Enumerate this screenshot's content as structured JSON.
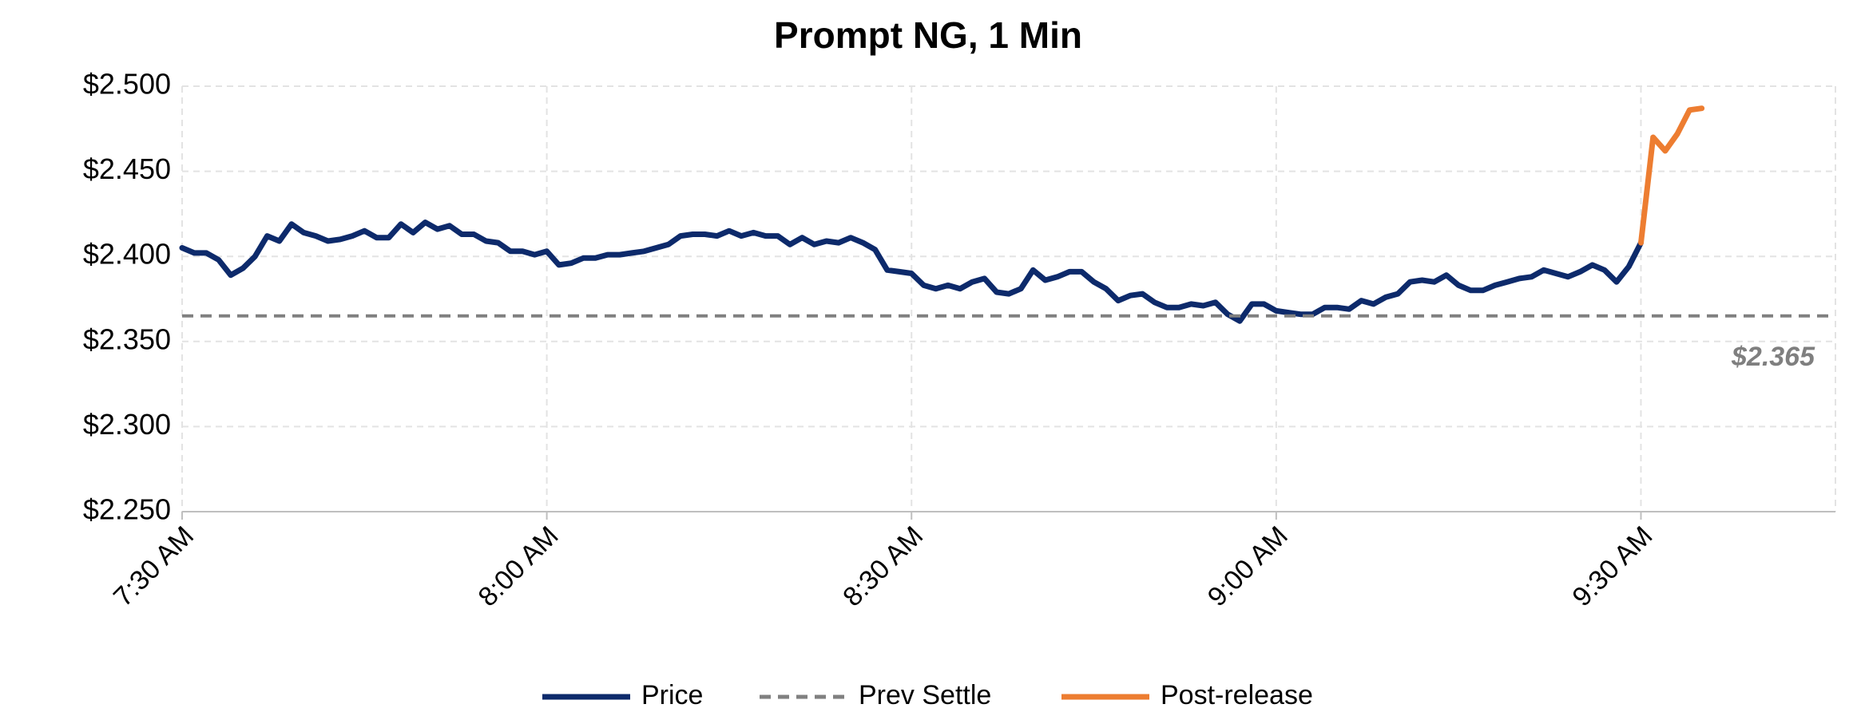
{
  "chart_data": {
    "type": "line",
    "title": "Prompt NG, 1 Min",
    "xlim": [
      450,
      586
    ],
    "xticks": [
      {
        "value": 450,
        "label": "7:30 AM"
      },
      {
        "value": 480,
        "label": "8:00 AM"
      },
      {
        "value": 510,
        "label": "8:30 AM"
      },
      {
        "value": 540,
        "label": "9:00 AM"
      },
      {
        "value": 570,
        "label": "9:30 AM"
      }
    ],
    "ylim": [
      2.25,
      2.5
    ],
    "yticks": [
      {
        "value": 2.25,
        "label": "$2.250"
      },
      {
        "value": 2.3,
        "label": "$2.300"
      },
      {
        "value": 2.35,
        "label": "$2.350"
      },
      {
        "value": 2.4,
        "label": "$2.400"
      },
      {
        "value": 2.45,
        "label": "$2.450"
      },
      {
        "value": 2.5,
        "label": "$2.500"
      }
    ],
    "grid": true,
    "series": [
      {
        "name": "Price",
        "color": "#0d2a6b",
        "dash": false,
        "x": [
          450,
          451,
          452,
          453,
          454,
          455,
          456,
          457,
          458,
          459,
          460,
          461,
          462,
          463,
          464,
          465,
          466,
          467,
          468,
          469,
          470,
          471,
          472,
          473,
          474,
          475,
          476,
          477,
          478,
          479,
          480,
          481,
          482,
          483,
          484,
          485,
          486,
          487,
          488,
          489,
          490,
          491,
          492,
          493,
          494,
          495,
          496,
          497,
          498,
          499,
          500,
          501,
          502,
          503,
          504,
          505,
          506,
          507,
          508,
          509,
          510,
          511,
          512,
          513,
          514,
          515,
          516,
          517,
          518,
          519,
          520,
          521,
          522,
          523,
          524,
          525,
          526,
          527,
          528,
          529,
          530,
          531,
          532,
          533,
          534,
          535,
          536,
          537,
          538,
          539,
          540,
          541,
          542,
          543,
          544,
          545,
          546,
          547,
          548,
          549,
          550,
          551,
          552,
          553,
          554,
          555,
          556,
          557,
          558,
          559,
          560,
          561,
          562,
          563,
          564,
          565,
          566,
          567,
          568,
          569,
          570
        ],
        "values": [
          2.405,
          2.402,
          2.402,
          2.398,
          2.389,
          2.393,
          2.4,
          2.412,
          2.409,
          2.419,
          2.414,
          2.412,
          2.409,
          2.41,
          2.412,
          2.415,
          2.411,
          2.411,
          2.419,
          2.414,
          2.42,
          2.416,
          2.418,
          2.413,
          2.413,
          2.409,
          2.408,
          2.403,
          2.403,
          2.401,
          2.403,
          2.395,
          2.396,
          2.399,
          2.399,
          2.401,
          2.401,
          2.402,
          2.403,
          2.405,
          2.407,
          2.412,
          2.413,
          2.413,
          2.412,
          2.415,
          2.412,
          2.414,
          2.412,
          2.412,
          2.407,
          2.411,
          2.407,
          2.409,
          2.408,
          2.411,
          2.408,
          2.404,
          2.392,
          2.391,
          2.39,
          2.383,
          2.381,
          2.383,
          2.381,
          2.385,
          2.387,
          2.379,
          2.378,
          2.381,
          2.392,
          2.386,
          2.388,
          2.391,
          2.391,
          2.385,
          2.381,
          2.374,
          2.377,
          2.378,
          2.373,
          2.37,
          2.37,
          2.372,
          2.371,
          2.373,
          2.366,
          2.362,
          2.372,
          2.372,
          2.368,
          2.367,
          2.366,
          2.366,
          2.37,
          2.37,
          2.369,
          2.374,
          2.372,
          2.376,
          2.378,
          2.385,
          2.386,
          2.385,
          2.389,
          2.383,
          2.38,
          2.38,
          2.383,
          2.385,
          2.387,
          2.388,
          2.392,
          2.39,
          2.388,
          2.391,
          2.395,
          2.392,
          2.385,
          2.394,
          2.408
        ]
      },
      {
        "name": "Prev Settle",
        "color": "#808080",
        "dash": true,
        "x": [
          450,
          586
        ],
        "values": [
          2.365,
          2.365
        ],
        "value_labels": [
          null,
          "$2.365"
        ]
      },
      {
        "name": "Post-release",
        "color": "#ed7d31",
        "dash": false,
        "x": [
          570,
          571,
          572,
          573,
          574,
          575
        ],
        "values": [
          2.408,
          2.47,
          2.462,
          2.472,
          2.486,
          2.487
        ]
      }
    ]
  }
}
